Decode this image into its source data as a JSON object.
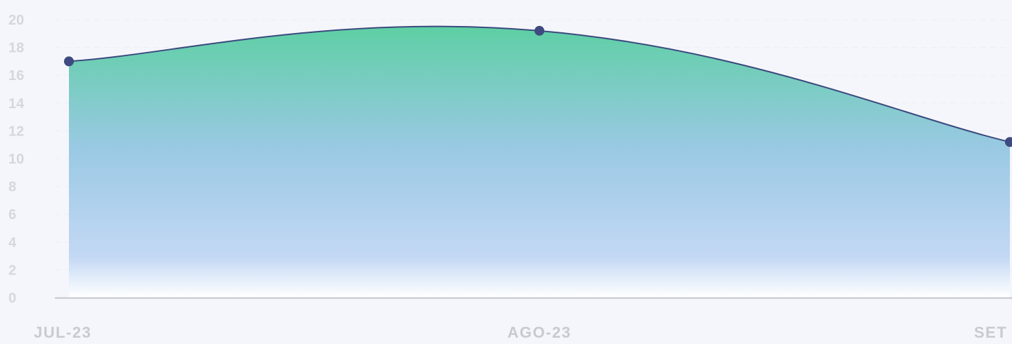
{
  "chart_data": {
    "type": "area",
    "categories": [
      "JUL-23",
      "AGO-23",
      "SET"
    ],
    "series": [
      {
        "values": [
          17,
          19.2,
          11.2
        ]
      }
    ],
    "ylim": [
      0,
      20
    ],
    "yticks": [
      "0",
      "2",
      "4",
      "6",
      "8",
      "10",
      "12",
      "14",
      "16",
      "18",
      "20"
    ],
    "grid": true,
    "colors": {
      "line": "#3b4a7e",
      "marker": "#3f4a80",
      "fill_top": "#5ecfa4",
      "fill_mid": "#9ac9e4",
      "fill_low": "#c3d8f4",
      "fill_bottom": "#ffffff",
      "axis": "#c4c6cf"
    }
  }
}
